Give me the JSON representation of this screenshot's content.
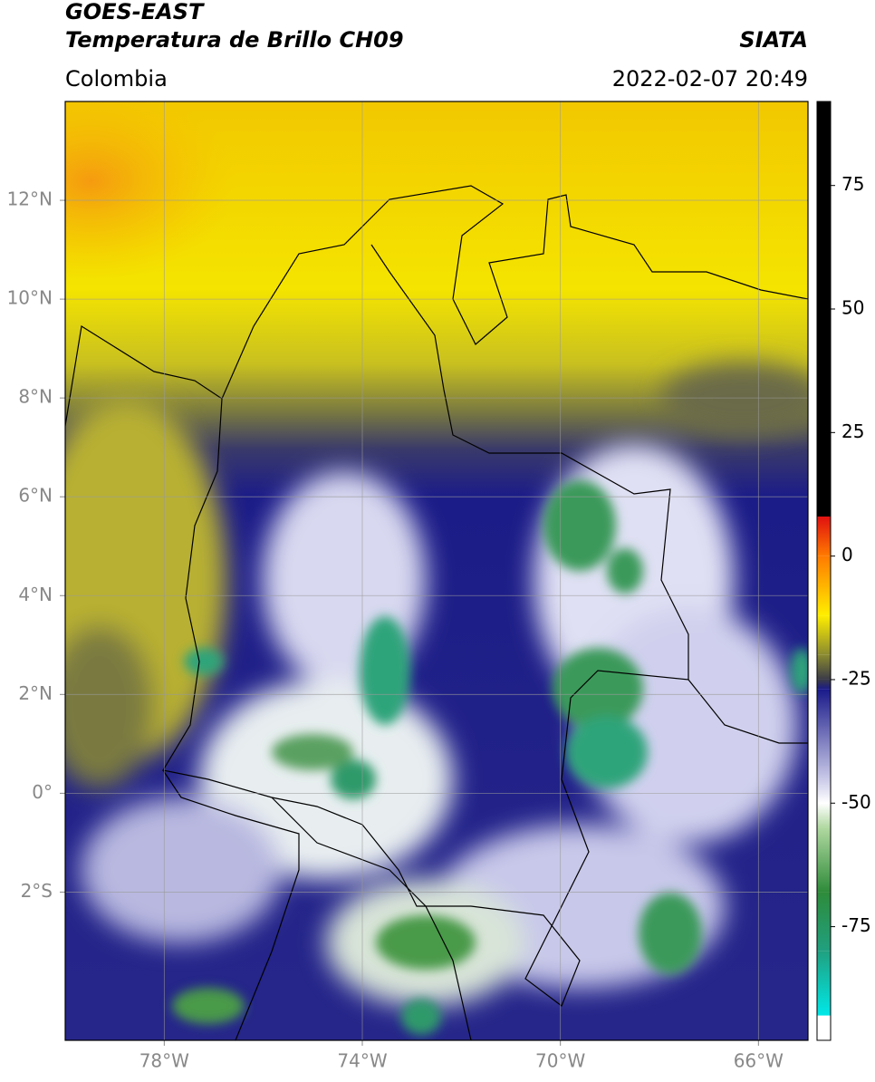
{
  "header": {
    "title": "GOES-EAST",
    "subtitle": "Temperatura de Brillo CH09",
    "source": "SIATA",
    "region": "Colombia",
    "datetime": "2022-02-07 20:49"
  },
  "map": {
    "xlim": [
      -80,
      -65
    ],
    "ylim": [
      -5,
      14
    ],
    "xticks": [
      {
        "value": -78,
        "label": "78°W"
      },
      {
        "value": -74,
        "label": "74°W"
      },
      {
        "value": -70,
        "label": "70°W"
      },
      {
        "value": -66,
        "label": "66°W"
      }
    ],
    "yticks": [
      {
        "value": 12,
        "label": "12°N"
      },
      {
        "value": 10,
        "label": "10°N"
      },
      {
        "value": 8,
        "label": "8°N"
      },
      {
        "value": 6,
        "label": "6°N"
      },
      {
        "value": 4,
        "label": "4°N"
      },
      {
        "value": 2,
        "label": "2°N"
      },
      {
        "value": 0,
        "label": "0°"
      },
      {
        "value": -2,
        "label": "2°S"
      }
    ],
    "grid": true
  },
  "colorbar": {
    "clim": [
      -98,
      92
    ],
    "ticks": [
      75,
      50,
      25,
      0,
      -25,
      -50,
      -75
    ],
    "colormap": [
      {
        "value": 92,
        "color": "#000000"
      },
      {
        "value": 8,
        "color": "#000000"
      },
      {
        "value": 8,
        "color": "#e01010"
      },
      {
        "value": 0,
        "color": "#ff7a00"
      },
      {
        "value": -12,
        "color": "#ffee00"
      },
      {
        "value": -20,
        "color": "#8a8a30"
      },
      {
        "value": -25,
        "color": "#3a3a48"
      },
      {
        "value": -27,
        "color": "#1a1a8a"
      },
      {
        "value": -45,
        "color": "#c8c8e8"
      },
      {
        "value": -50,
        "color": "#ffffff"
      },
      {
        "value": -55,
        "color": "#b0d8a0"
      },
      {
        "value": -68,
        "color": "#2e8b3a"
      },
      {
        "value": -80,
        "color": "#20a080"
      },
      {
        "value": -93,
        "color": "#00e8e8"
      },
      {
        "value": -93,
        "color": "#ffffff"
      },
      {
        "value": -98,
        "color": "#ffffff"
      }
    ]
  }
}
